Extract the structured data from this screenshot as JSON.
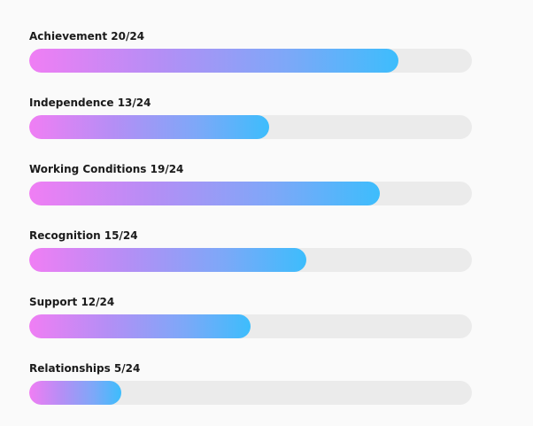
{
  "chart_data": {
    "type": "bar",
    "orientation": "horizontal",
    "max": 24,
    "grid": false,
    "colors": {
      "gradient_start": "#f07ef4",
      "gradient_end": "#3dbdfc",
      "track": "#ebebeb"
    },
    "bars": [
      {
        "label": "Achievement 20/24",
        "value": 20
      },
      {
        "label": "Independence 13/24",
        "value": 13
      },
      {
        "label": "Working Conditions 19/24",
        "value": 19
      },
      {
        "label": "Recognition 15/24",
        "value": 15
      },
      {
        "label": "Support 12/24",
        "value": 12
      },
      {
        "label": "Relationships 5/24",
        "value": 5
      }
    ]
  }
}
